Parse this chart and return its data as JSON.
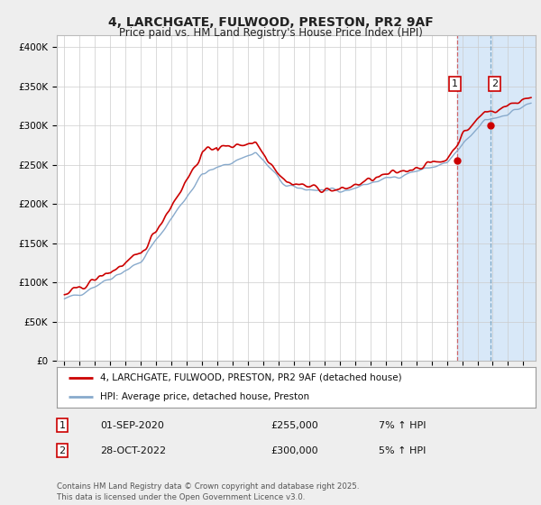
{
  "title": "4, LARCHGATE, FULWOOD, PRESTON, PR2 9AF",
  "subtitle": "Price paid vs. HM Land Registry's House Price Index (HPI)",
  "title_fontsize": 10,
  "subtitle_fontsize": 8.5,
  "ylabel_ticks": [
    "£0",
    "£50K",
    "£100K",
    "£150K",
    "£200K",
    "£250K",
    "£300K",
    "£350K",
    "£400K"
  ],
  "ytick_values": [
    0,
    50000,
    100000,
    150000,
    200000,
    250000,
    300000,
    350000,
    400000
  ],
  "ylim": [
    0,
    415000
  ],
  "xlim_start": 1994.5,
  "xlim_end": 2025.8,
  "background_color": "#eeeeee",
  "plot_bg_color": "#ffffff",
  "red_line_color": "#cc0000",
  "blue_line_color": "#88aacc",
  "sale1_x": 2020.67,
  "sale1_y": 255000,
  "sale2_x": 2022.83,
  "sale2_y": 300000,
  "shade_color": "#d8e8f8",
  "vline_color": "#cc4444",
  "legend_label_red": "4, LARCHGATE, FULWOOD, PRESTON, PR2 9AF (detached house)",
  "legend_label_blue": "HPI: Average price, detached house, Preston",
  "table_row1": [
    "1",
    "01-SEP-2020",
    "£255,000",
    "7% ↑ HPI"
  ],
  "table_row2": [
    "2",
    "28-OCT-2022",
    "£300,000",
    "5% ↑ HPI"
  ],
  "footer": "Contains HM Land Registry data © Crown copyright and database right 2025.\nThis data is licensed under the Open Government Licence v3.0.",
  "grid_color": "#cccccc"
}
